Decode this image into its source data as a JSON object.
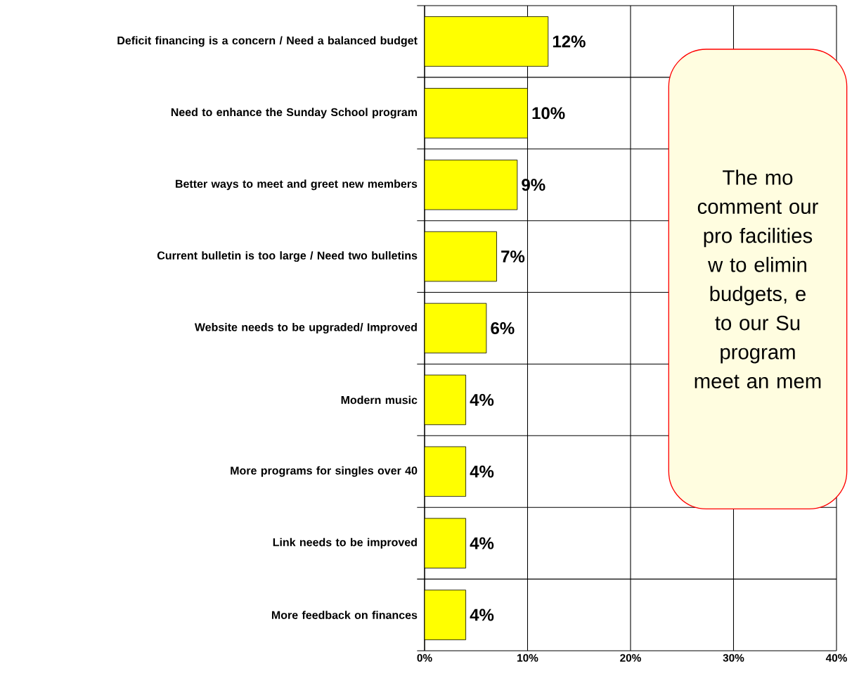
{
  "chart_data": {
    "type": "bar",
    "orientation": "horizontal",
    "categories": [
      "Deficit financing is a concern / Need a balanced budget",
      "Need to enhance the Sunday School program",
      "Better ways to meet and greet new members",
      "Current bulletin is too large / Need two bulletins",
      "Website needs to be upgraded/ Improved",
      "Modern music",
      "More programs for singles over 40",
      "Link needs to be improved",
      "More feedback on finances"
    ],
    "values": [
      12,
      10,
      9,
      7,
      6,
      4,
      4,
      4,
      4
    ],
    "value_labels": [
      "12%",
      "10%",
      "9%",
      "7%",
      "6%",
      "4%",
      "4%",
      "4%",
      "4%"
    ],
    "color": "#ffff00",
    "xlim": [
      0,
      40
    ],
    "xticks": [
      {
        "value": 0,
        "label": "0%"
      },
      {
        "value": 10,
        "label": "10%"
      },
      {
        "value": 20,
        "label": "20%"
      },
      {
        "value": 30,
        "label": "30%"
      },
      {
        "value": 40,
        "label": "40%"
      }
    ],
    "grid": true,
    "annotations": [
      "The mo comment our pro facilities w to elimin budgets, e to our Su program meet an mem"
    ]
  }
}
